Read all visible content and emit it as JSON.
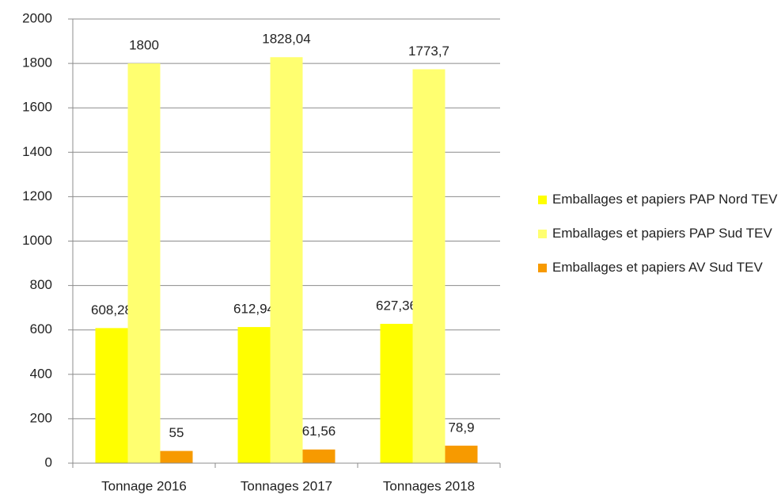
{
  "chart_data": {
    "type": "bar",
    "categories": [
      "Tonnage 2016",
      "Tonnages  2017",
      "Tonnages 2018"
    ],
    "series": [
      {
        "name": "Emballages et papiers PAP Nord TEV",
        "color": "#ffff00",
        "values": [
          608.28,
          612.94,
          627.36
        ],
        "value_labels": [
          "608,28",
          "612,94",
          "627,36"
        ]
      },
      {
        "name": "Emballages et papiers PAP Sud TEV",
        "color": "#ffff70",
        "values": [
          1800,
          1828.04,
          1773.7
        ],
        "value_labels": [
          "1800",
          "1828,04",
          "1773,7"
        ]
      },
      {
        "name": "Emballages et papiers AV Sud TEV",
        "color": "#f79a00",
        "values": [
          55,
          61.56,
          78.9
        ],
        "value_labels": [
          "55",
          "61,56",
          "78,9"
        ]
      }
    ],
    "ylim": [
      0,
      2000
    ],
    "yticks": [
      0,
      200,
      400,
      600,
      800,
      1000,
      1200,
      1400,
      1600,
      1800,
      2000
    ],
    "grid": true,
    "legend": "right"
  }
}
